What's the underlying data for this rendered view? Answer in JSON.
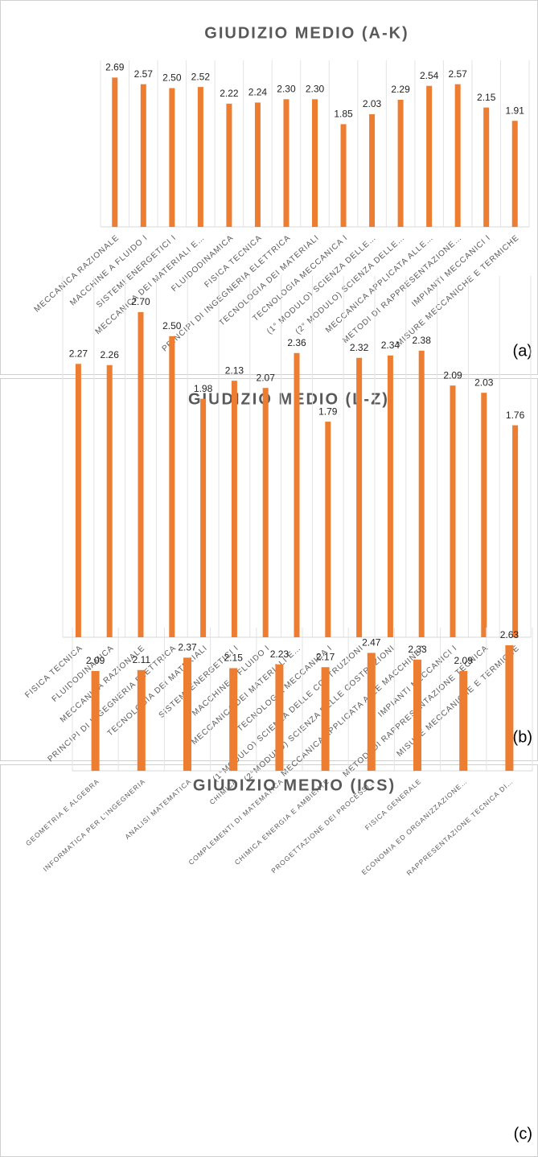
{
  "chart_data": [
    {
      "type": "bar",
      "title": "GIUDIZIO MEDIO (A-K)",
      "panel": "(a)",
      "color": "#ed7d31",
      "ylim": [
        0,
        3
      ],
      "categories": [
        "MECCANICA RAZIONALE",
        "MACCHINE A FLUIDO I",
        "SISTEMI ENERGETICI I",
        "MECCANICA DEI MATERIALI E…",
        "FLUIDODINAMICA",
        "FISICA TECNICA",
        "PRINCIPI DI INGEGNERIA ELETTRICA",
        "TECNOLOGIA DEI MATERIALI",
        "TECNOLOGIA MECCANICA I",
        "(1° MODULO) SCIENZA DELLE…",
        "(2° MODULO) SCIENZA DELLE…",
        "MECCANICA APPLICATA ALLE…",
        "METODI DI RAPPRESENTAZIONE…",
        "IMPIANTI MECCANICI I",
        "MISURE MECCANICHE E TERMICHE"
      ],
      "values": [
        2.69,
        2.57,
        2.5,
        2.52,
        2.22,
        2.24,
        2.3,
        2.3,
        1.85,
        2.03,
        2.29,
        2.54,
        2.57,
        2.15,
        1.91
      ],
      "value_labels": [
        "2.69",
        "2.57",
        "2.50",
        "2.52",
        "2.22",
        "2.24",
        "2.30",
        "2.30",
        "1.85",
        "2.03",
        "2.29",
        "2.54",
        "2.57",
        "2.15",
        "1.91"
      ]
    },
    {
      "type": "bar",
      "title": "GIUDIZIO MEDIO (L-Z)",
      "panel": "(b)",
      "color": "#ed7d31",
      "ylim": [
        0,
        3
      ],
      "categories": [
        "FISICA TECNICA",
        "FLUIDODINAMICA",
        "MECCANICA RAZIONALE",
        "PRINCIPI DI INGEGNERIA ELETTRICA",
        "TECNOLOGIA DEI MATERIALI",
        "SISTEMI ENERGETICI I",
        "MACCHINE A FLUIDO I",
        "MECCANICA DEI MATERIALI E…",
        "TECNOLOGIA MECCANICA I",
        "(1°MODULO) SCIENZA DELLE COSTRUZIONI",
        "(2°MODULO) SCIENZA DELLE COSTRUZIONI",
        "MECCANICA APPLICATA ALLE MACCHINE I",
        "IMPIANTI MECCANICI I",
        "METODI DI RAPPRESENTAZIONE TECNICA",
        "MISURE MECCANICHE E TERMICHE"
      ],
      "values": [
        2.27,
        2.26,
        2.7,
        2.5,
        1.98,
        2.13,
        2.07,
        2.36,
        1.79,
        2.32,
        2.34,
        2.38,
        2.09,
        2.03,
        1.76
      ],
      "value_labels": [
        "2.27",
        "2.26",
        "2.70",
        "2.50",
        "1.98",
        "2.13",
        "2.07",
        "2.36",
        "1.79",
        "2.32",
        "2.34",
        "2.38",
        "2.09",
        "2.03",
        "1.76"
      ]
    },
    {
      "type": "bar",
      "title": "GIUDIZIO MEDIO (ICS)",
      "panel": "(c)",
      "color": "#ed7d31",
      "ylim": [
        0,
        3
      ],
      "categories": [
        "GEOMETRIA E ALGEBRA",
        "INFORMATICA PER L'INGEGNERIA",
        "ANALISI MATEMATICA",
        "CHIMICA",
        "COMPLEMENTI DI MATEMATICA",
        "CHIMICA ENERGIA E AMBIENTE",
        "PROGETTAZIONE DEI PROCESSI…",
        "FISICA GENERALE",
        "ECONOMIA ED ORGANIZZAZIONE…",
        "RAPPRESENTAZIONE TECNICA DI…"
      ],
      "values": [
        2.09,
        2.11,
        2.37,
        2.15,
        2.23,
        2.17,
        2.47,
        2.33,
        2.09,
        2.63
      ],
      "value_labels": [
        "2.09",
        "2.11",
        "2.37",
        "2.15",
        "2.23",
        "2.17",
        "2.47",
        "2.33",
        "2.09",
        "2.63"
      ]
    }
  ]
}
